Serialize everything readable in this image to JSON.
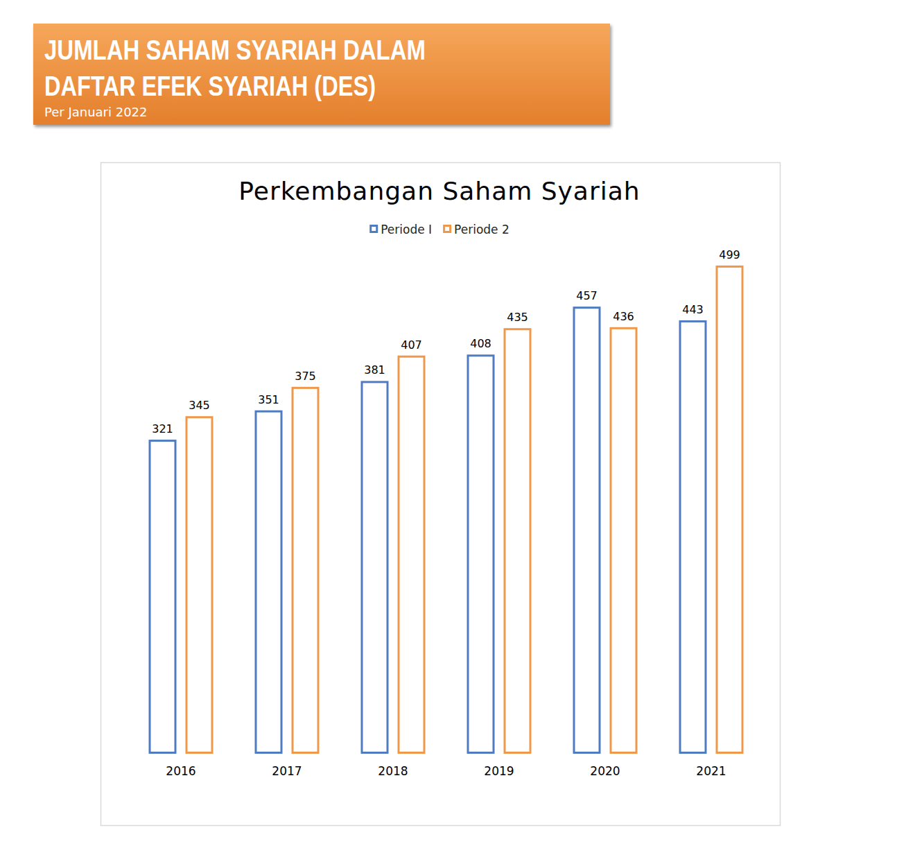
{
  "header": {
    "title_lines": [
      "JUMLAH SAHAM SYARIAH DALAM",
      "DAFTAR EFEK SYARIAH (DES)"
    ],
    "subtitle": "Per Januari 2022"
  },
  "chart_data": {
    "type": "bar",
    "title": "Perkembangan Saham Syariah",
    "categories": [
      "2016",
      "2017",
      "2018",
      "2019",
      "2020",
      "2021"
    ],
    "series": [
      {
        "name": "Periode I",
        "color": "#4f7cc0",
        "values": [
          321,
          351,
          381,
          408,
          457,
          443
        ]
      },
      {
        "name": "Periode 2",
        "color": "#f0984a",
        "values": [
          345,
          375,
          407,
          435,
          436,
          499
        ]
      }
    ],
    "ylim": [
      0,
      500
    ],
    "tick_labels": "x",
    "data_labels": true,
    "legend": "top",
    "grid": false
  }
}
